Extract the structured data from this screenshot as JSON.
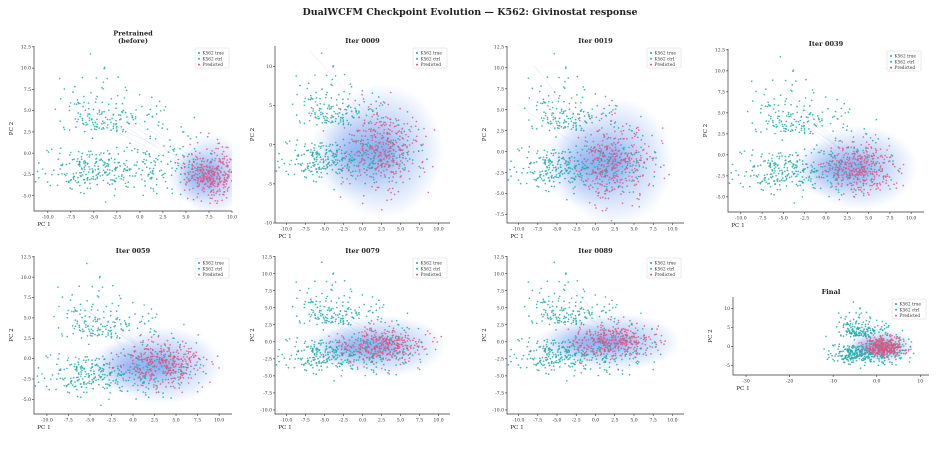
{
  "figure": {
    "suptitle": "DualWCFM Checkpoint Evolution — K562: Givinostat response"
  },
  "legend_entries": [
    "K562 true",
    "K562 ctrl",
    "Predicted"
  ],
  "colors": {
    "true": "#2a9fb0",
    "ctrl": "#1ab7a6",
    "pred": "#e0527d",
    "density": "#3b78e8",
    "axis": "#333333"
  },
  "chart_data": [
    {
      "type": "scatter",
      "title": "Pretrained\n(before)",
      "xlabel": "PC 1",
      "ylabel": "PC 2",
      "xlim": [
        -11.5,
        10
      ],
      "ylim": [
        -6.8,
        12.6
      ],
      "xticks": [
        -10.0,
        -7.5,
        -5.0,
        -2.5,
        0.0,
        2.5,
        5.0,
        7.5,
        10.0
      ],
      "yticks": [
        -5.0,
        -2.5,
        0.0,
        2.5,
        5.0,
        7.5,
        10.0,
        12.5
      ],
      "legend": "top-right",
      "pred_center": [
        7.8,
        -2.5
      ],
      "pred_spread": [
        1.4,
        1.5
      ],
      "density_spread": [
        1.6,
        2.0
      ]
    },
    {
      "type": "scatter",
      "title": "Iter 0009",
      "xlabel": "PC 1",
      "ylabel": "PC 2",
      "xlim": [
        -11.5,
        11.5
      ],
      "ylim": [
        -10,
        12.6
      ],
      "xticks": [
        -10.0,
        -7.5,
        -5.0,
        -2.5,
        0.0,
        2.5,
        5.0,
        7.5,
        10.0
      ],
      "yticks": [
        -10,
        -5,
        0,
        5,
        10
      ],
      "legend": "top-right",
      "pred_center": [
        2.7,
        -0.8
      ],
      "pred_spread": [
        2.5,
        2.6
      ],
      "density_spread": [
        3.3,
        3.6
      ]
    },
    {
      "type": "scatter",
      "title": "Iter 0019",
      "xlabel": "PC 1",
      "ylabel": "PC 2",
      "xlim": [
        -11.5,
        11.5
      ],
      "ylim": [
        -8.5,
        12.6
      ],
      "xticks": [
        -10.0,
        -7.5,
        -5.0,
        -2.5,
        0.0,
        2.5,
        5.0,
        7.5,
        10.0
      ],
      "yticks": [
        -7.5,
        -5.0,
        -2.5,
        0.0,
        2.5,
        5.0,
        7.5,
        10.0,
        12.5
      ],
      "legend": "top-right",
      "pred_center": [
        2.5,
        -1.2
      ],
      "pred_spread": [
        2.4,
        2.3
      ],
      "density_spread": [
        3.2,
        3.2
      ]
    },
    {
      "type": "scatter",
      "title": "Iter 0039",
      "xlabel": "PC 1",
      "ylabel": "PC 2",
      "xlim": [
        -11.5,
        11.5
      ],
      "ylim": [
        -6.8,
        12.6
      ],
      "xticks": [
        -10.0,
        -7.5,
        -5.0,
        -2.5,
        0.0,
        2.5,
        5.0,
        7.5,
        10.0
      ],
      "yticks": [
        -5.0,
        -2.5,
        0.0,
        2.5,
        5.0,
        7.5,
        10.0,
        12.5
      ],
      "legend": "top-right",
      "pred_center": [
        4.0,
        -1.5
      ],
      "pred_spread": [
        2.0,
        1.5
      ],
      "density_spread": [
        2.8,
        2.1
      ]
    },
    {
      "type": "scatter",
      "title": "Iter 0059",
      "xlabel": "PC 1",
      "ylabel": "PC 2",
      "xlim": [
        -11.5,
        11.5
      ],
      "ylim": [
        -6.8,
        12.6
      ],
      "xticks": [
        -10.0,
        -7.5,
        -5.0,
        -2.5,
        0.0,
        2.5,
        5.0,
        7.5,
        10.0
      ],
      "yticks": [
        -5.0,
        -2.5,
        0.0,
        2.5,
        5.0,
        7.5,
        10.0,
        12.5
      ],
      "legend": "top-right",
      "pred_center": [
        3.3,
        -0.8
      ],
      "pred_spread": [
        2.3,
        1.4
      ],
      "density_spread": [
        3.0,
        2.0
      ]
    },
    {
      "type": "scatter",
      "title": "Iter 0079",
      "xlabel": "PC 1",
      "ylabel": "PC 2",
      "xlim": [
        -11.5,
        11.5
      ],
      "ylim": [
        -10.6,
        12.6
      ],
      "xticks": [
        -10.0,
        -7.5,
        -5.0,
        -2.5,
        0.0,
        2.5,
        5.0,
        7.5,
        10.0
      ],
      "yticks": [
        -10.0,
        -7.5,
        -5.0,
        -2.5,
        0.0,
        2.5,
        5.0,
        7.5,
        10.0,
        12.5
      ],
      "legend": "top-right",
      "pred_center": [
        2.6,
        -0.6
      ],
      "pred_spread": [
        2.7,
        1.3
      ],
      "density_spread": [
        3.5,
        1.9
      ]
    },
    {
      "type": "scatter",
      "title": "Iter 0089",
      "xlabel": "PC 1",
      "ylabel": "PC 2",
      "xlim": [
        -11.5,
        11.5
      ],
      "ylim": [
        -10.6,
        12.6
      ],
      "xticks": [
        -10.0,
        -7.5,
        -5.0,
        -2.5,
        0.0,
        2.5,
        5.0,
        7.5,
        10.0
      ],
      "yticks": [
        -10.0,
        -7.5,
        -5.0,
        -2.5,
        0.0,
        2.5,
        5.0,
        7.5,
        10.0,
        12.5
      ],
      "legend": "top-right",
      "pred_center": [
        2.5,
        0.0
      ],
      "pred_spread": [
        2.8,
        1.2
      ],
      "density_spread": [
        3.6,
        1.8
      ]
    },
    {
      "type": "scatter",
      "title": "Final",
      "xlabel": "PC 1",
      "ylabel": "PC 2",
      "xlim": [
        -33,
        12
      ],
      "ylim": [
        -7.5,
        13
      ],
      "xticks": [
        -30,
        -20,
        -10,
        0,
        10
      ],
      "yticks": [
        -5,
        0,
        5,
        10
      ],
      "legend": "top-right",
      "pred_center": [
        1.5,
        0.0
      ],
      "pred_spread": [
        2.2,
        1.3
      ],
      "density_spread": [
        3.0,
        2.0
      ]
    }
  ]
}
